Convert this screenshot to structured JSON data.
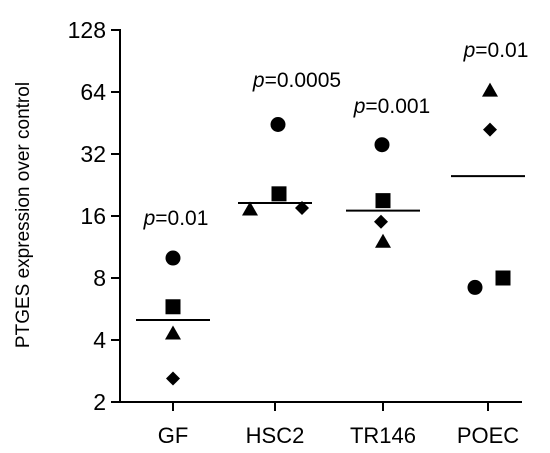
{
  "chart_data": {
    "type": "scatter",
    "yscale": "log2",
    "ylim": [
      2,
      128
    ],
    "yticks": [
      2,
      4,
      8,
      16,
      32,
      64,
      128
    ],
    "ylabel": "PTGES expression over control",
    "xlabel": "",
    "categories": [
      "GF",
      "HSC2",
      "TR146",
      "POEC"
    ],
    "groups": [
      {
        "name": "GF",
        "p_prefix": "p",
        "p_value": "=0.01",
        "mean": 5.0,
        "points": [
          {
            "marker": "circle",
            "y": 10.0
          },
          {
            "marker": "square",
            "y": 5.8
          },
          {
            "marker": "triangle",
            "y": 4.3
          },
          {
            "marker": "diamond",
            "y": 2.6
          }
        ]
      },
      {
        "name": "HSC2",
        "p_prefix": "p",
        "p_value": "=0.0005",
        "mean": 18.5,
        "points": [
          {
            "marker": "triangle",
            "y": 17.2
          },
          {
            "marker": "circle",
            "y": 44.5
          },
          {
            "marker": "square",
            "y": 20.5
          },
          {
            "marker": "diamond",
            "y": 17.5
          }
        ]
      },
      {
        "name": "TR146",
        "p_prefix": "p",
        "p_value": "=0.001",
        "mean": 17.0,
        "points": [
          {
            "marker": "circle",
            "y": 35.5
          },
          {
            "marker": "square",
            "y": 19.0
          },
          {
            "marker": "diamond",
            "y": 15.0
          },
          {
            "marker": "triangle",
            "y": 12.0
          }
        ]
      },
      {
        "name": "POEC",
        "p_prefix": "p",
        "p_value": "=0.01",
        "mean": 25.0,
        "points": [
          {
            "marker": "triangle",
            "y": 65.0
          },
          {
            "marker": "diamond",
            "y": 42.0
          },
          {
            "marker": "circle",
            "y": 7.2
          },
          {
            "marker": "square",
            "y": 8.0
          }
        ]
      }
    ]
  }
}
